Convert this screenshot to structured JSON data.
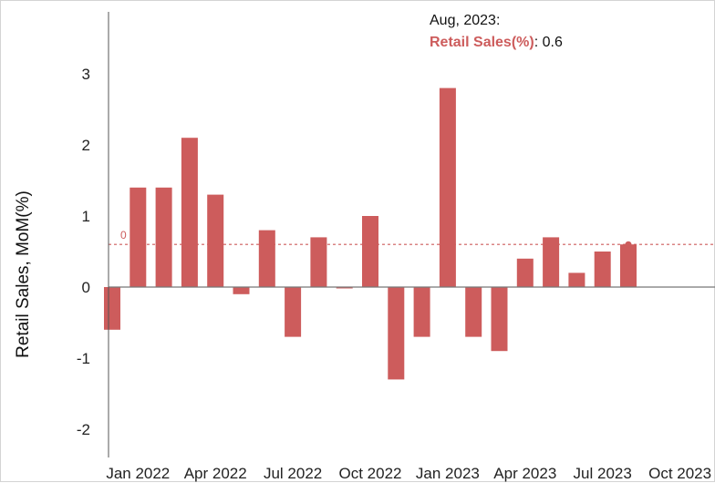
{
  "colors": {
    "bar": "#cd5c5c",
    "axis": "#555555",
    "zero_line": "#777777",
    "reference_line": "#cd5c5c",
    "text": "#222222"
  },
  "chart_data": {
    "type": "bar",
    "title": "",
    "xlabel": "",
    "ylabel": "Retail Sales, MoM(%)",
    "ylim": [
      -2.25,
      3.85
    ],
    "y_ticks": [
      -2,
      -1,
      0,
      1,
      2,
      3
    ],
    "x_ticks": [
      "Jan 2022",
      "Apr 2022",
      "Jul 2022",
      "Oct 2022",
      "Jan 2023",
      "Apr 2023",
      "Jul 2023",
      "Oct 2023"
    ],
    "grid": false,
    "categories": [
      "Dec 2021",
      "Jan 2022",
      "Feb 2022",
      "Mar 2022",
      "Apr 2022",
      "May 2022",
      "Jun 2022",
      "Jul 2022",
      "Aug 2022",
      "Sep 2022",
      "Oct 2022",
      "Nov 2022",
      "Dec 2022",
      "Jan 2023",
      "Feb 2023",
      "Mar 2023",
      "Apr 2023",
      "May 2023",
      "Jun 2023",
      "Jul 2023",
      "Aug 2023"
    ],
    "series": [
      {
        "values": [
          -0.6,
          1.4,
          1.4,
          2.1,
          1.3,
          -0.1,
          0.8,
          -0.7,
          0.7,
          0.0,
          1.0,
          -1.3,
          -0.7,
          2.8,
          -0.7,
          -0.9,
          0.4,
          0.7,
          0.2,
          0.5,
          0.6
        ]
      }
    ],
    "reference_line": {
      "value": 0.6,
      "label": "0"
    },
    "tooltip": {
      "date": "Aug, 2023:",
      "series_label": "Retail Sales(%)",
      "separator": ": ",
      "value": "0.6"
    }
  }
}
